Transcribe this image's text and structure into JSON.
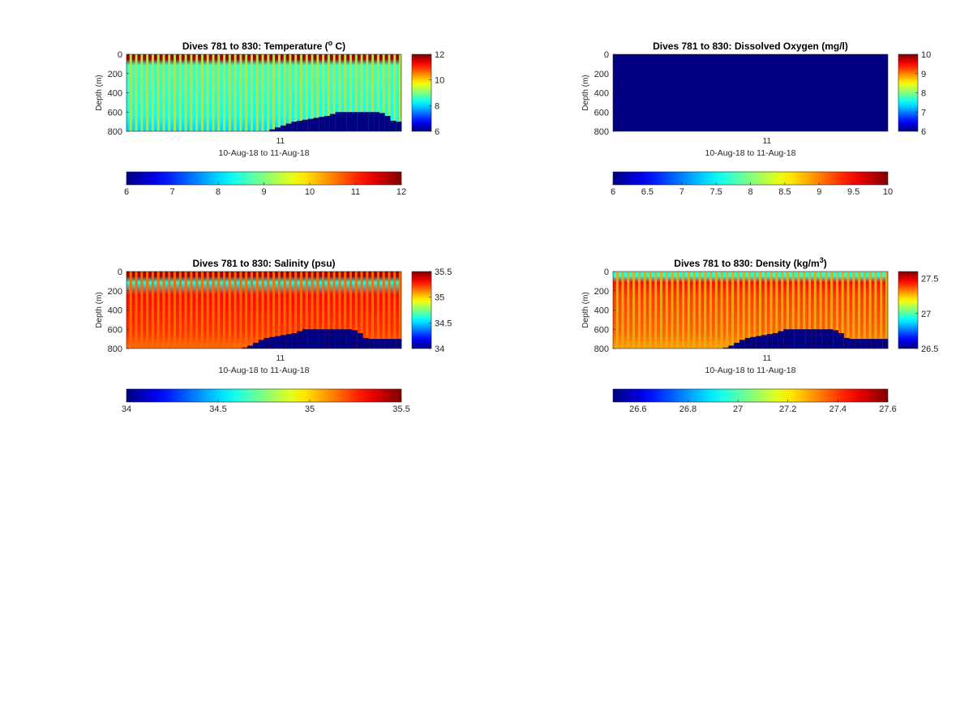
{
  "figure": {
    "panels": [
      {
        "id": "temperature",
        "title_main": "Dives 781 to 830: Temperature (",
        "title_sup": "o",
        "title_end": " C)",
        "ylabel": "Depth (m)",
        "xtick": "11",
        "xlabel": "10-Aug-18 to 11-Aug-18",
        "side_ticks": [
          "12",
          "10",
          "8",
          "6"
        ],
        "bottom_ticks": [
          "6",
          "7",
          "8",
          "9",
          "10",
          "11",
          "12"
        ]
      },
      {
        "id": "oxygen",
        "title_main": "Dives 781 to 830: Dissolved Oxygen (mg/l)",
        "title_sup": "",
        "title_end": "",
        "ylabel": "Depth (m)",
        "xtick": "11",
        "xlabel": "10-Aug-18 to 11-Aug-18",
        "side_ticks": [
          "10",
          "9",
          "8",
          "7",
          "6"
        ],
        "bottom_ticks": [
          "6",
          "6.5",
          "7",
          "7.5",
          "8",
          "8.5",
          "9",
          "9.5",
          "10"
        ]
      },
      {
        "id": "salinity",
        "title_main": "Dives 781 to 830: Salinity (psu)",
        "title_sup": "",
        "title_end": "",
        "ylabel": "Depth (m)",
        "xtick": "11",
        "xlabel": "10-Aug-18 to 11-Aug-18",
        "side_ticks": [
          "35.5",
          "35",
          "34.5",
          "34"
        ],
        "bottom_ticks": [
          "34",
          "34.5",
          "35",
          "35.5"
        ]
      },
      {
        "id": "density",
        "title_main": "Dives 781 to 830: Density (kg/m",
        "title_sup": "3",
        "title_end": ")",
        "ylabel": "Depth (m)",
        "xtick": "11",
        "xlabel": "10-Aug-18 to 11-Aug-18",
        "side_ticks": [
          "27.5",
          "27",
          "26.5"
        ],
        "bottom_ticks": [
          "26.6",
          "26.8",
          "27",
          "27.2",
          "27.4",
          "27.6"
        ]
      }
    ]
  },
  "chart_data": [
    {
      "type": "heatmap",
      "title": "Dives 781 to 830: Temperature (o C)",
      "xlabel": "10-Aug-18 to 11-Aug-18",
      "ylabel": "Depth (m)",
      "x_ticks": [
        "11"
      ],
      "y_ticks": [
        0,
        200,
        400,
        600,
        800
      ],
      "ylim": [
        800,
        0
      ],
      "colormap": "jet",
      "clim": [
        6,
        12
      ],
      "colorbar_side_ticks": [
        6,
        8,
        10,
        12
      ],
      "colorbar_bottom_ticks": [
        6,
        7,
        8,
        9,
        10,
        11,
        12
      ],
      "profile_count": 50,
      "surface_value": 11.8,
      "interior_value": 8.6,
      "dive_gap_value": 10.0,
      "bottom_value": 6,
      "seafloor_depth_by_dive": [
        800,
        800,
        800,
        800,
        800,
        800,
        800,
        800,
        800,
        800,
        800,
        800,
        800,
        800,
        800,
        800,
        800,
        800,
        800,
        800,
        800,
        800,
        800,
        800,
        800,
        800,
        780,
        760,
        740,
        720,
        700,
        690,
        680,
        670,
        660,
        650,
        640,
        620,
        600,
        600,
        600,
        600,
        600,
        600,
        600,
        600,
        610,
        640,
        690,
        700
      ]
    },
    {
      "type": "heatmap",
      "title": "Dives 781 to 830: Dissolved Oxygen (mg/l)",
      "xlabel": "10-Aug-18 to 11-Aug-18",
      "ylabel": "Depth (m)",
      "x_ticks": [
        "11"
      ],
      "y_ticks": [
        0,
        200,
        400,
        600,
        800
      ],
      "ylim": [
        800,
        0
      ],
      "colormap": "jet",
      "clim": [
        6,
        10
      ],
      "colorbar_side_ticks": [
        6,
        7,
        8,
        9,
        10
      ],
      "colorbar_bottom_ticks": [
        6,
        6.5,
        7,
        7.5,
        8,
        8.5,
        9,
        9.5,
        10
      ],
      "uniform_value": 6
    },
    {
      "type": "heatmap",
      "title": "Dives 781 to 830: Salinity (psu)",
      "xlabel": "10-Aug-18 to 11-Aug-18",
      "ylabel": "Depth (m)",
      "x_ticks": [
        "11"
      ],
      "y_ticks": [
        0,
        200,
        400,
        600,
        800
      ],
      "ylim": [
        800,
        0
      ],
      "colormap": "jet",
      "clim": [
        34,
        35.5
      ],
      "colorbar_side_ticks": [
        34,
        34.5,
        35,
        35.5
      ],
      "colorbar_bottom_ticks": [
        34,
        34.5,
        35,
        35.5
      ],
      "profile_count": 50,
      "surface_value": 35.45,
      "near_surface_value": 34.6,
      "interior_value": 35.3,
      "dive_gap_value": 35.05,
      "bottom_value": 34,
      "seafloor_depth_by_dive": [
        800,
        800,
        800,
        800,
        800,
        800,
        800,
        800,
        800,
        800,
        800,
        800,
        800,
        800,
        800,
        800,
        800,
        800,
        800,
        800,
        800,
        790,
        770,
        740,
        710,
        690,
        680,
        670,
        660,
        650,
        640,
        620,
        600,
        600,
        600,
        600,
        600,
        600,
        600,
        600,
        600,
        610,
        640,
        690,
        700,
        700,
        700,
        700,
        700,
        700
      ]
    },
    {
      "type": "heatmap",
      "title": "Dives 781 to 830: Density (kg/m3)",
      "xlabel": "10-Aug-18 to 11-Aug-18",
      "ylabel": "Depth (m)",
      "x_ticks": [
        "11"
      ],
      "y_ticks": [
        0,
        200,
        400,
        600,
        800
      ],
      "ylim": [
        800,
        0
      ],
      "colormap": "jet",
      "clim": [
        26.5,
        27.6
      ],
      "colorbar_side_ticks": [
        26.5,
        27,
        27.5
      ],
      "colorbar_bottom_ticks": [
        26.6,
        26.8,
        27,
        27.2,
        27.4,
        27.6
      ],
      "profile_count": 50,
      "surface_value": 26.95,
      "near_surface_value": 27.45,
      "interior_value": 27.4,
      "dive_gap_value": 27.15,
      "bottom_value": 26.5,
      "seafloor_depth_by_dive": [
        800,
        800,
        800,
        800,
        800,
        800,
        800,
        800,
        800,
        800,
        800,
        800,
        800,
        800,
        800,
        800,
        800,
        800,
        800,
        800,
        790,
        770,
        740,
        710,
        690,
        680,
        670,
        660,
        650,
        640,
        620,
        600,
        600,
        600,
        600,
        600,
        600,
        600,
        600,
        600,
        610,
        640,
        690,
        700,
        700,
        700,
        700,
        700,
        700,
        700
      ]
    }
  ]
}
